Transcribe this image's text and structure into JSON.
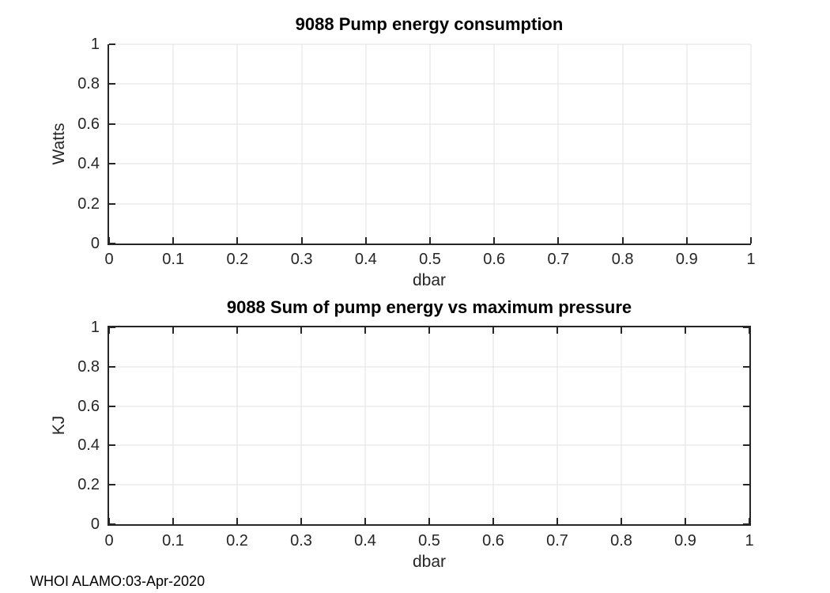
{
  "figure": {
    "background_color": "#ffffff",
    "axis_color": "#262626",
    "grid_color": "#e2e2e2",
    "title_color": "#000000",
    "watermark": "WHOI ALAMO:03-Apr-2020"
  },
  "chart_data": [
    {
      "type": "line",
      "title": "9088 Pump energy consumption",
      "xlabel": "dbar",
      "ylabel": "Watts",
      "xlim": [
        0,
        1
      ],
      "ylim": [
        0,
        1
      ],
      "x_ticks": [
        0,
        0.1,
        0.2,
        0.3,
        0.4,
        0.5,
        0.6,
        0.7,
        0.8,
        0.9,
        1
      ],
      "x_tick_labels": [
        "0",
        "0.1",
        "0.2",
        "0.3",
        "0.4",
        "0.5",
        "0.6",
        "0.7",
        "0.8",
        "0.9",
        "1"
      ],
      "y_ticks": [
        0,
        0.2,
        0.4,
        0.6,
        0.8,
        1
      ],
      "y_tick_labels": [
        "0",
        "0.2",
        "0.4",
        "0.6",
        "0.8",
        "1"
      ],
      "grid": true,
      "box": false,
      "series": []
    },
    {
      "type": "line",
      "title": "9088 Sum of pump energy vs maximum pressure",
      "xlabel": "dbar",
      "ylabel": "KJ",
      "xlim": [
        0,
        1
      ],
      "ylim": [
        0,
        1
      ],
      "x_ticks": [
        0,
        0.1,
        0.2,
        0.3,
        0.4,
        0.5,
        0.6,
        0.7,
        0.8,
        0.9,
        1
      ],
      "x_tick_labels": [
        "0",
        "0.1",
        "0.2",
        "0.3",
        "0.4",
        "0.5",
        "0.6",
        "0.7",
        "0.8",
        "0.9",
        "1"
      ],
      "y_ticks": [
        0,
        0.2,
        0.4,
        0.6,
        0.8,
        1
      ],
      "y_tick_labels": [
        "0",
        "0.2",
        "0.4",
        "0.6",
        "0.8",
        "1"
      ],
      "grid": true,
      "box": true,
      "series": []
    }
  ]
}
